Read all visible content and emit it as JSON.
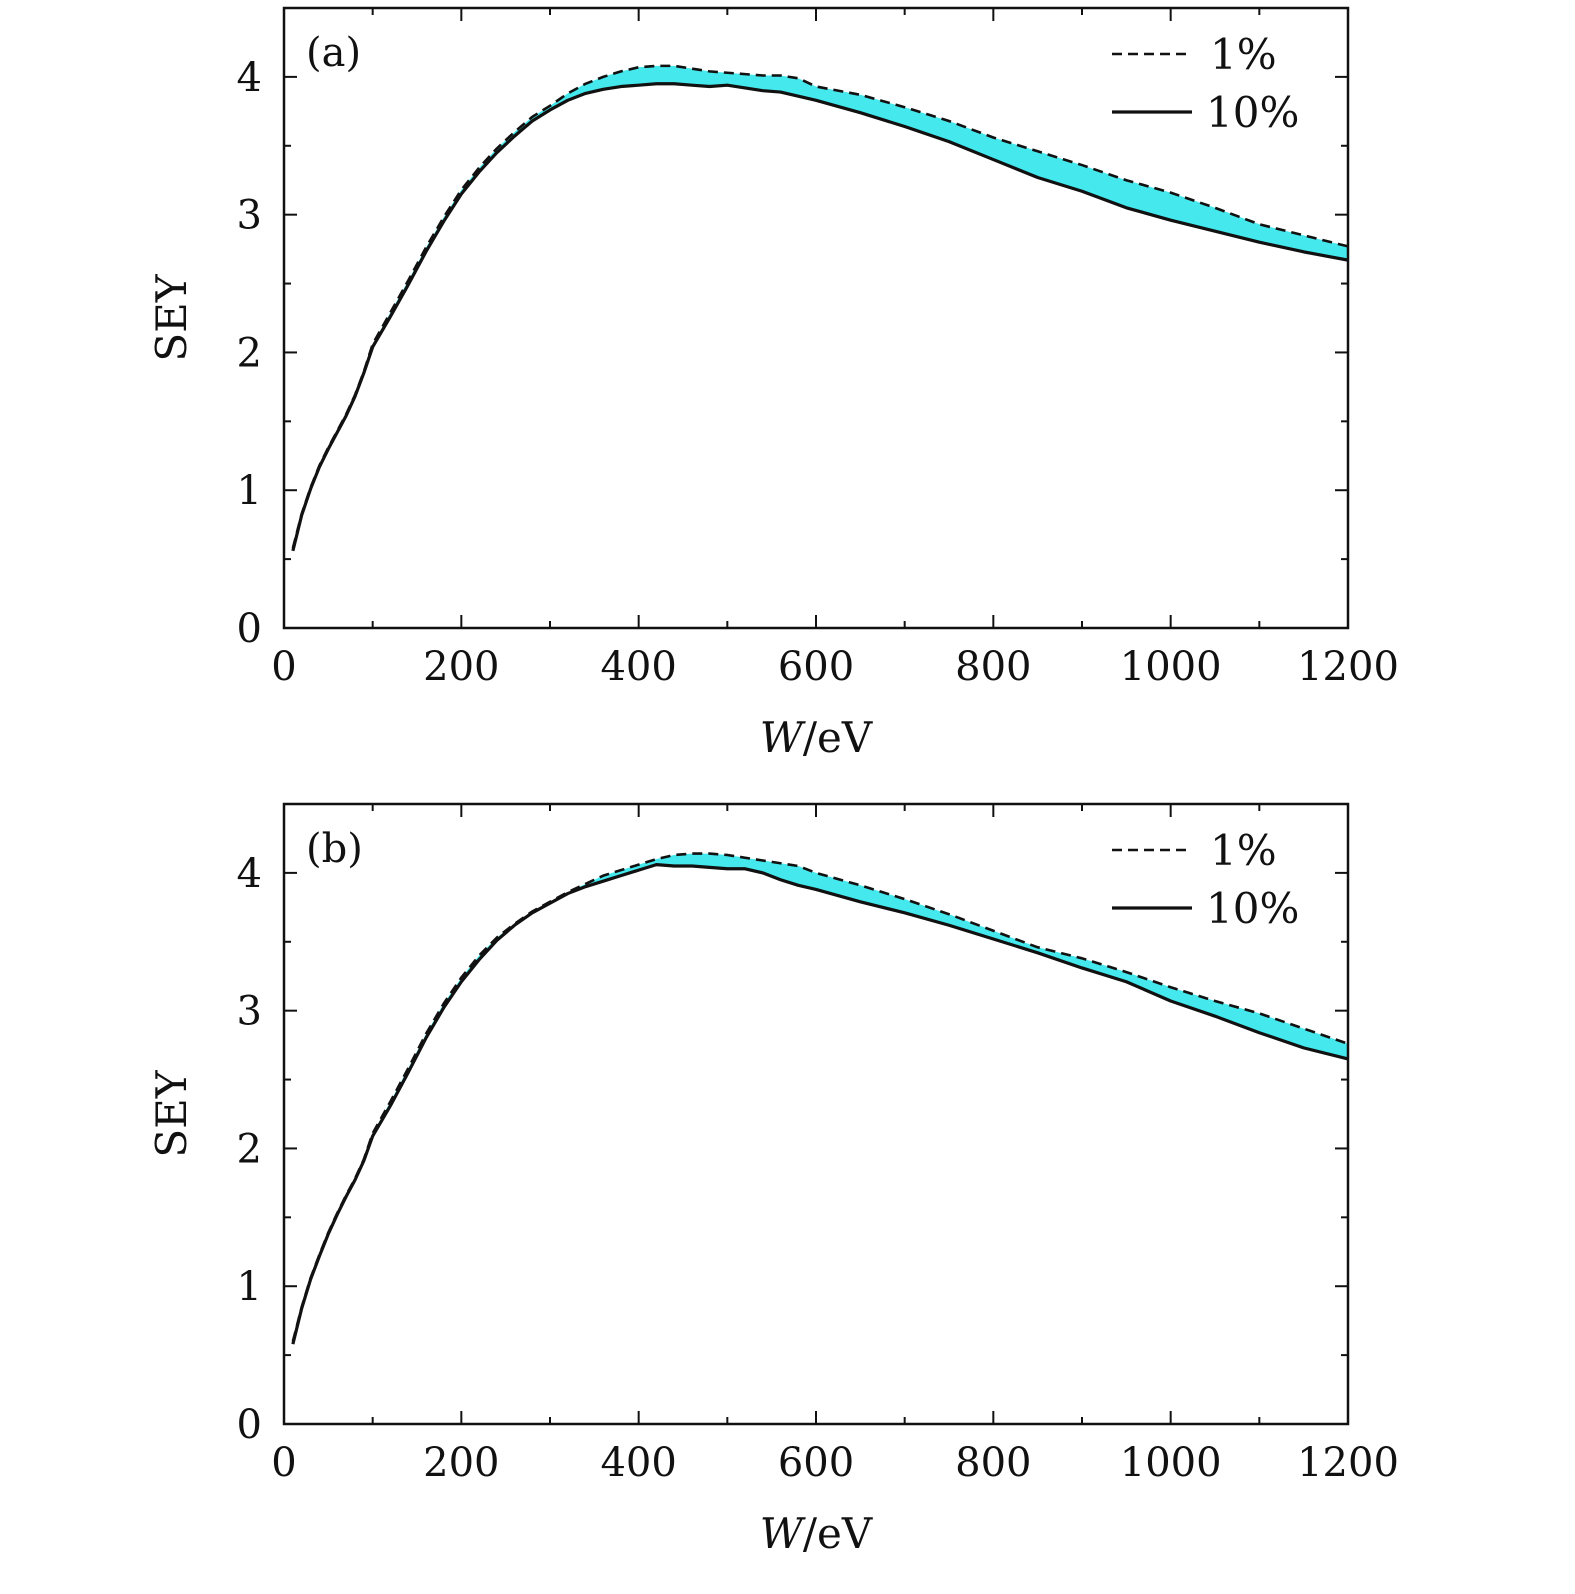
{
  "figure": {
    "colors": {
      "band_fill": "#45e8ec",
      "line": "#111111",
      "frame": "#111111"
    },
    "legend_location": "top-right"
  },
  "chart_data": [
    {
      "type": "line",
      "panel_label": "(a)",
      "xlabel_var": "W",
      "xlabel_unit": "/eV",
      "ylabel": "SEY",
      "xlim": [
        0,
        1200
      ],
      "ylim": [
        0,
        4.5
      ],
      "xticks": [
        0,
        200,
        400,
        600,
        800,
        1000,
        1200
      ],
      "yticks": [
        0,
        1,
        2,
        3,
        4
      ],
      "fill_between": {
        "series": [
          "1%",
          "10%"
        ],
        "color": "#45e8ec"
      },
      "series": [
        {
          "name": "1%",
          "style": "dashed",
          "x": [
            10,
            20,
            30,
            40,
            50,
            60,
            70,
            80,
            90,
            100,
            120,
            140,
            160,
            180,
            200,
            220,
            240,
            260,
            280,
            300,
            320,
            340,
            360,
            380,
            400,
            420,
            440,
            460,
            480,
            500,
            520,
            540,
            560,
            580,
            600,
            650,
            700,
            750,
            800,
            850,
            900,
            950,
            1000,
            1050,
            1100,
            1150,
            1200
          ],
          "y": [
            0.58,
            0.83,
            1.02,
            1.18,
            1.31,
            1.43,
            1.55,
            1.69,
            1.86,
            2.06,
            2.29,
            2.52,
            2.76,
            2.98,
            3.18,
            3.34,
            3.48,
            3.6,
            3.71,
            3.79,
            3.88,
            3.95,
            4.0,
            4.04,
            4.07,
            4.08,
            4.08,
            4.06,
            4.04,
            4.03,
            4.02,
            4.01,
            4.01,
            3.99,
            3.93,
            3.87,
            3.78,
            3.68,
            3.56,
            3.46,
            3.36,
            3.25,
            3.16,
            3.05,
            2.93,
            2.85,
            2.77
          ]
        },
        {
          "name": "10%",
          "style": "solid",
          "x": [
            10,
            20,
            30,
            40,
            50,
            60,
            70,
            80,
            90,
            100,
            120,
            140,
            160,
            180,
            200,
            220,
            240,
            260,
            280,
            300,
            320,
            340,
            360,
            380,
            400,
            420,
            440,
            460,
            480,
            500,
            520,
            540,
            560,
            580,
            600,
            650,
            700,
            750,
            800,
            850,
            900,
            950,
            1000,
            1050,
            1100,
            1150,
            1200
          ],
          "y": [
            0.56,
            0.82,
            1.01,
            1.17,
            1.3,
            1.42,
            1.54,
            1.68,
            1.85,
            2.04,
            2.26,
            2.49,
            2.73,
            2.95,
            3.15,
            3.31,
            3.45,
            3.57,
            3.68,
            3.76,
            3.83,
            3.88,
            3.91,
            3.93,
            3.94,
            3.95,
            3.95,
            3.94,
            3.93,
            3.94,
            3.92,
            3.9,
            3.89,
            3.86,
            3.83,
            3.74,
            3.64,
            3.53,
            3.4,
            3.27,
            3.17,
            3.05,
            2.96,
            2.88,
            2.8,
            2.73,
            2.67
          ]
        }
      ]
    },
    {
      "type": "line",
      "panel_label": "(b)",
      "xlabel_var": "W",
      "xlabel_unit": "/eV",
      "ylabel": "SEY",
      "xlim": [
        0,
        1200
      ],
      "ylim": [
        0,
        4.5
      ],
      "xticks": [
        0,
        200,
        400,
        600,
        800,
        1000,
        1200
      ],
      "yticks": [
        0,
        1,
        2,
        3,
        4
      ],
      "fill_between": {
        "series": [
          "1%",
          "10%"
        ],
        "color": "#45e8ec"
      },
      "series": [
        {
          "name": "1%",
          "style": "dashed",
          "x": [
            10,
            20,
            30,
            40,
            50,
            60,
            70,
            80,
            90,
            100,
            120,
            140,
            160,
            180,
            200,
            220,
            240,
            260,
            280,
            300,
            320,
            340,
            360,
            380,
            400,
            420,
            440,
            460,
            480,
            500,
            520,
            540,
            560,
            580,
            600,
            650,
            700,
            750,
            800,
            850,
            900,
            950,
            1000,
            1050,
            1100,
            1150,
            1200
          ],
          "y": [
            0.6,
            0.85,
            1.06,
            1.23,
            1.39,
            1.53,
            1.66,
            1.78,
            1.92,
            2.11,
            2.34,
            2.58,
            2.83,
            3.05,
            3.24,
            3.4,
            3.53,
            3.63,
            3.72,
            3.79,
            3.86,
            3.92,
            3.98,
            4.02,
            4.06,
            4.1,
            4.13,
            4.14,
            4.14,
            4.13,
            4.11,
            4.09,
            4.07,
            4.05,
            4.0,
            3.91,
            3.81,
            3.7,
            3.58,
            3.46,
            3.38,
            3.28,
            3.17,
            3.07,
            2.98,
            2.87,
            2.76
          ]
        },
        {
          "name": "10%",
          "style": "solid",
          "x": [
            10,
            20,
            30,
            40,
            50,
            60,
            70,
            80,
            90,
            100,
            120,
            140,
            160,
            180,
            200,
            220,
            240,
            260,
            280,
            300,
            320,
            340,
            360,
            380,
            400,
            420,
            440,
            460,
            480,
            500,
            520,
            540,
            560,
            580,
            600,
            650,
            700,
            750,
            800,
            850,
            900,
            950,
            1000,
            1050,
            1100,
            1150,
            1200
          ],
          "y": [
            0.58,
            0.84,
            1.05,
            1.22,
            1.38,
            1.52,
            1.65,
            1.77,
            1.91,
            2.09,
            2.31,
            2.55,
            2.8,
            3.02,
            3.21,
            3.37,
            3.51,
            3.62,
            3.71,
            3.78,
            3.85,
            3.9,
            3.94,
            3.98,
            4.02,
            4.06,
            4.05,
            4.05,
            4.04,
            4.03,
            4.03,
            4.0,
            3.95,
            3.91,
            3.88,
            3.79,
            3.71,
            3.62,
            3.52,
            3.42,
            3.31,
            3.21,
            3.07,
            2.96,
            2.84,
            2.73,
            2.65
          ]
        }
      ]
    }
  ]
}
